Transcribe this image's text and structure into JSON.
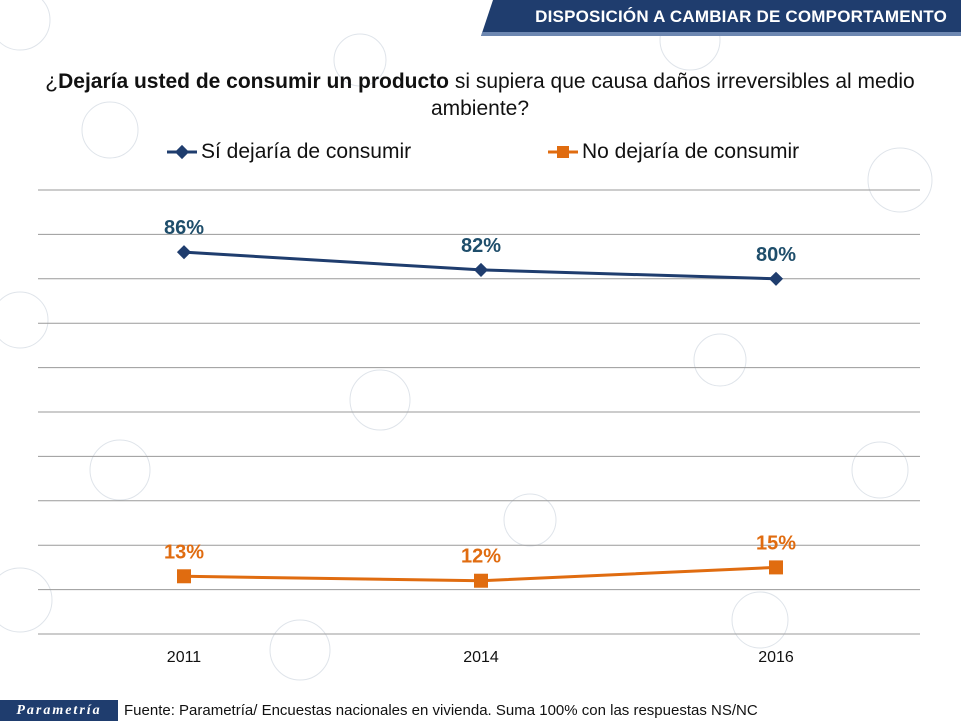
{
  "header": {
    "title": "DISPOSICIÓN A CAMBIAR DE COMPORTAMENTO"
  },
  "question": {
    "prefix": "¿",
    "bold": "Dejaría usted de consumir un producto",
    "rest": " si supiera que causa daños irreversibles al medio ambiente?"
  },
  "colors": {
    "series1": "#1f3d6e",
    "series2": "#e06c10",
    "header_bg": "#1f3d6e",
    "grid": "#9a9a9a"
  },
  "chart_data": {
    "type": "line",
    "title": "",
    "xlabel": "",
    "ylabel": "",
    "categories": [
      "2011",
      "2014",
      "2016"
    ],
    "ylim": [
      0,
      100
    ],
    "grid": true,
    "legend": "top",
    "series": [
      {
        "name": "Sí dejaría de consumir",
        "values": [
          86,
          82,
          80
        ],
        "labels": [
          "86%",
          "82%",
          "80%"
        ],
        "color": "#1f3d6e",
        "marker": "diamond"
      },
      {
        "name": "No dejaría de consumir",
        "values": [
          13,
          12,
          15
        ],
        "labels": [
          "13%",
          "12%",
          "15%"
        ],
        "color": "#e06c10",
        "marker": "square"
      }
    ]
  },
  "footer": {
    "logo_text": "Parametría",
    "source": "Fuente: Parametría/ Encuestas nacionales en vivienda. Suma 100% con las respuestas NS/NC"
  }
}
